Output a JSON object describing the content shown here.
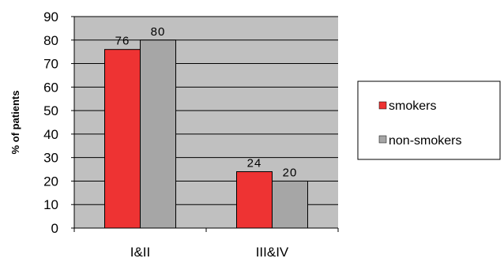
{
  "chart_data": {
    "type": "bar",
    "categories": [
      "I&II",
      "III&IV"
    ],
    "series": [
      {
        "name": "smokers",
        "values": [
          76,
          24
        ],
        "color": "#ee3333"
      },
      {
        "name": "non-smokers",
        "values": [
          80,
          20
        ],
        "color": "#a6a6a6"
      }
    ],
    "data_labels": [
      [
        "76",
        "24"
      ],
      [
        "80",
        "20"
      ]
    ],
    "ylabel": "% of patients",
    "xlabel": "",
    "ylim": [
      0,
      90
    ],
    "yticks": [
      0,
      10,
      20,
      30,
      40,
      50,
      60,
      70,
      80,
      90
    ],
    "grid": true,
    "plot_background": "#c0c0c0",
    "legend_position": "right"
  }
}
